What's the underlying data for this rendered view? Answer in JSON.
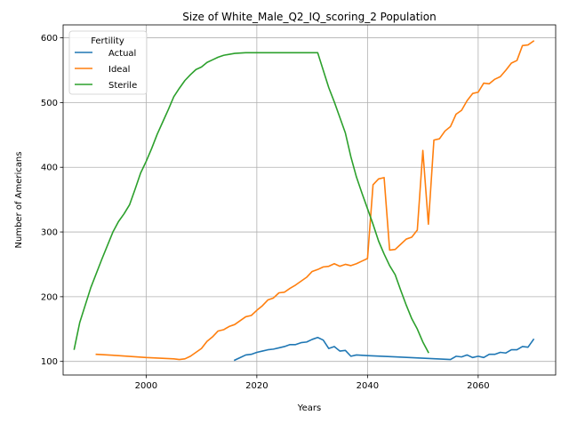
{
  "chart_data": {
    "type": "line",
    "title": "Size of White_Male_Q2_IQ_scoring_2 Population",
    "xlabel": "Years",
    "ylabel": "Number of Americans",
    "xlim": [
      1985,
      2074
    ],
    "ylim": [
      79,
      620
    ],
    "xticks": [
      2000,
      2020,
      2040,
      2060
    ],
    "yticks": [
      100,
      200,
      300,
      400,
      500,
      600
    ],
    "grid": true,
    "legend": {
      "title": "Fertility",
      "placement": "top-left"
    },
    "colors": {
      "Actual": "#1f77b4",
      "Ideal": "#ff7f0e",
      "Sterile": "#2ca02c"
    },
    "series": [
      {
        "name": "Actual",
        "x": [
          2016,
          2017,
          2018,
          2019,
          2020,
          2021,
          2022,
          2023,
          2024,
          2025,
          2026,
          2027,
          2028,
          2029,
          2030,
          2031,
          2032,
          2033,
          2034,
          2035,
          2036,
          2037,
          2038,
          2040,
          2045,
          2050,
          2055,
          2056,
          2057,
          2058,
          2059,
          2060,
          2061,
          2062,
          2063,
          2064,
          2065,
          2066,
          2067,
          2068,
          2069,
          2070
        ],
        "values": [
          102,
          106,
          110,
          111,
          114,
          116,
          118,
          119,
          121,
          123,
          126,
          126,
          129,
          130,
          134,
          137,
          133,
          120,
          123,
          116,
          117,
          108,
          110,
          109,
          107,
          105,
          103,
          108,
          107,
          110,
          106,
          108,
          106,
          111,
          111,
          114,
          113,
          118,
          118,
          123,
          122,
          134
        ]
      },
      {
        "name": "Ideal",
        "x": [
          1991,
          1995,
          2000,
          2005,
          2006,
          2007,
          2008,
          2009,
          2010,
          2011,
          2012,
          2013,
          2014,
          2015,
          2016,
          2017,
          2018,
          2019,
          2020,
          2021,
          2022,
          2023,
          2024,
          2025,
          2026,
          2027,
          2028,
          2029,
          2030,
          2031,
          2032,
          2033,
          2034,
          2035,
          2036,
          2037,
          2038,
          2039,
          2040,
          2041,
          2042,
          2043,
          2044,
          2045,
          2046,
          2047,
          2048,
          2049,
          2050,
          2051,
          2052,
          2053,
          2054,
          2055,
          2056,
          2057,
          2058,
          2059,
          2060,
          2061,
          2062,
          2063,
          2064,
          2065,
          2066,
          2067,
          2068,
          2069,
          2070
        ],
        "values": [
          111,
          109,
          106,
          104,
          103,
          104,
          108,
          114,
          120,
          131,
          138,
          147,
          149,
          154,
          157,
          163,
          169,
          171,
          179,
          186,
          195,
          198,
          206,
          207,
          213,
          218,
          224,
          230,
          239,
          242,
          246,
          247,
          251,
          247,
          250,
          248,
          251,
          255,
          259,
          373,
          382,
          384,
          272,
          273,
          281,
          289,
          292,
          303,
          426,
          312,
          442,
          444,
          456,
          463,
          482,
          488,
          503,
          514,
          516,
          530,
          529,
          536,
          540,
          550,
          561,
          565,
          588,
          589,
          595
        ]
      },
      {
        "name": "Sterile",
        "x": [
          1987,
          1988,
          1990,
          1992,
          1994,
          1995,
          1996,
          1997,
          1998,
          1999,
          2000,
          2001,
          2002,
          2003,
          2004,
          2005,
          2006,
          2007,
          2008,
          2009,
          2010,
          2011,
          2012,
          2013,
          2014,
          2016,
          2018,
          2020,
          2025,
          2031,
          2032,
          2033,
          2034,
          2035,
          2036,
          2037,
          2038,
          2039,
          2040,
          2041,
          2042,
          2043,
          2044,
          2045,
          2046,
          2047,
          2048,
          2049,
          2050,
          2051
        ],
        "values": [
          119,
          160,
          214,
          258,
          300,
          316,
          328,
          342,
          366,
          391,
          409,
          429,
          451,
          470,
          489,
          509,
          522,
          534,
          543,
          551,
          555,
          562,
          566,
          570,
          573,
          576,
          577,
          577,
          577,
          577,
          550,
          523,
          501,
          477,
          453,
          416,
          385,
          360,
          336,
          312,
          286,
          266,
          248,
          234,
          210,
          187,
          166,
          150,
          130,
          114
        ]
      }
    ]
  }
}
